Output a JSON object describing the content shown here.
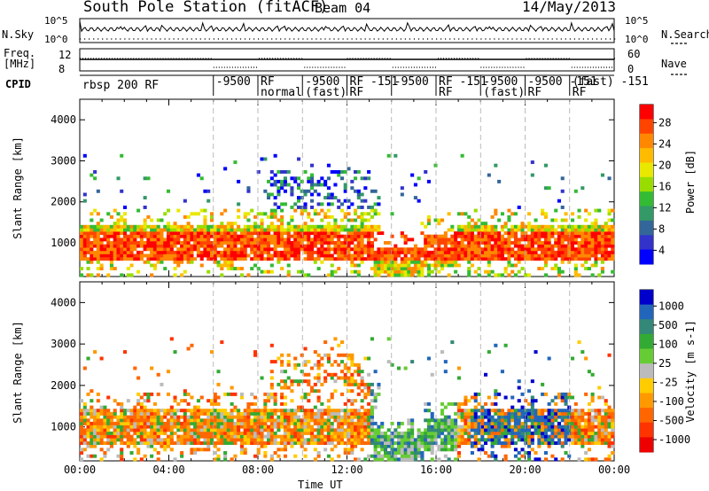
{
  "header": {
    "station": "South Pole Station (fitACF)",
    "beam": "Beam 04",
    "date": "14/May/2013"
  },
  "noise_panel": {
    "left_label": "N.Sky",
    "right_label": "N.Search",
    "left_ticks": [
      "10^5",
      "10^0"
    ],
    "right_ticks": [
      "10^5",
      "10^0"
    ]
  },
  "freq_panel": {
    "left_label_1": "Freq.",
    "left_label_2": "[MHz]",
    "right_label": "Nave",
    "left_ticks": [
      "12",
      "8"
    ],
    "right_ticks": [
      "60",
      "0"
    ]
  },
  "cpid": {
    "label": "CPID",
    "segments": [
      {
        "text": "rbsp 200 RF",
        "start": 0.0
      },
      {
        "text": "-9500",
        "start": 6.0
      },
      {
        "text": "RF normal",
        "start": 8.0
      },
      {
        "text": "-9500 (fast)",
        "start": 10.0
      },
      {
        "text": "RF -151 RF",
        "start": 12.0
      },
      {
        "text": "-9500",
        "start": 14.0
      },
      {
        "text": "RF -151 RF",
        "start": 16.0
      },
      {
        "text": "-9500 (fast)",
        "start": 18.0
      },
      {
        "text": "-9500 -151 RF",
        "start": 20.0
      },
      {
        "text": "(fast) -151 RF",
        "start": 22.0
      }
    ]
  },
  "chart_data": [
    {
      "type": "heatmap",
      "name": "power",
      "ylabel": "Slant Range [km]",
      "yticks": [
        1000,
        2000,
        3000,
        4000
      ],
      "ylim": [
        180,
        4500
      ],
      "xlim": [
        0,
        24
      ],
      "colorbar": {
        "label": "Power [dB]",
        "ticks": [
          "28",
          "24",
          "20",
          "16",
          "12",
          "8",
          "4"
        ],
        "colors": [
          "#ff0000",
          "#ff4400",
          "#ff8800",
          "#ffbb00",
          "#e8e800",
          "#99dd00",
          "#33bb33",
          "#339966",
          "#336699",
          "#3333cc",
          "#0000ff"
        ]
      }
    },
    {
      "type": "heatmap",
      "name": "velocity",
      "ylabel": "Slant Range [km]",
      "yticks": [
        1000,
        2000,
        3000,
        4000
      ],
      "ylim": [
        180,
        4500
      ],
      "xlim": [
        0,
        24
      ],
      "xlabel": "Time UT",
      "xticks": [
        "00:00",
        "04:00",
        "08:00",
        "12:00",
        "16:00",
        "20:00",
        "00:00"
      ],
      "colorbar": {
        "label": "Velocity [m s-1]",
        "ticks": [
          "1000",
          "500",
          "100",
          "25",
          "-25",
          "-100",
          "-500",
          "-1000"
        ],
        "colors": [
          "#0000cc",
          "#2266bb",
          "#338877",
          "#33aa33",
          "#66cc33",
          "#bbbbbb",
          "#ffcc00",
          "#ff9900",
          "#ff6600",
          "#ff3300",
          "#ee0000"
        ]
      }
    }
  ]
}
